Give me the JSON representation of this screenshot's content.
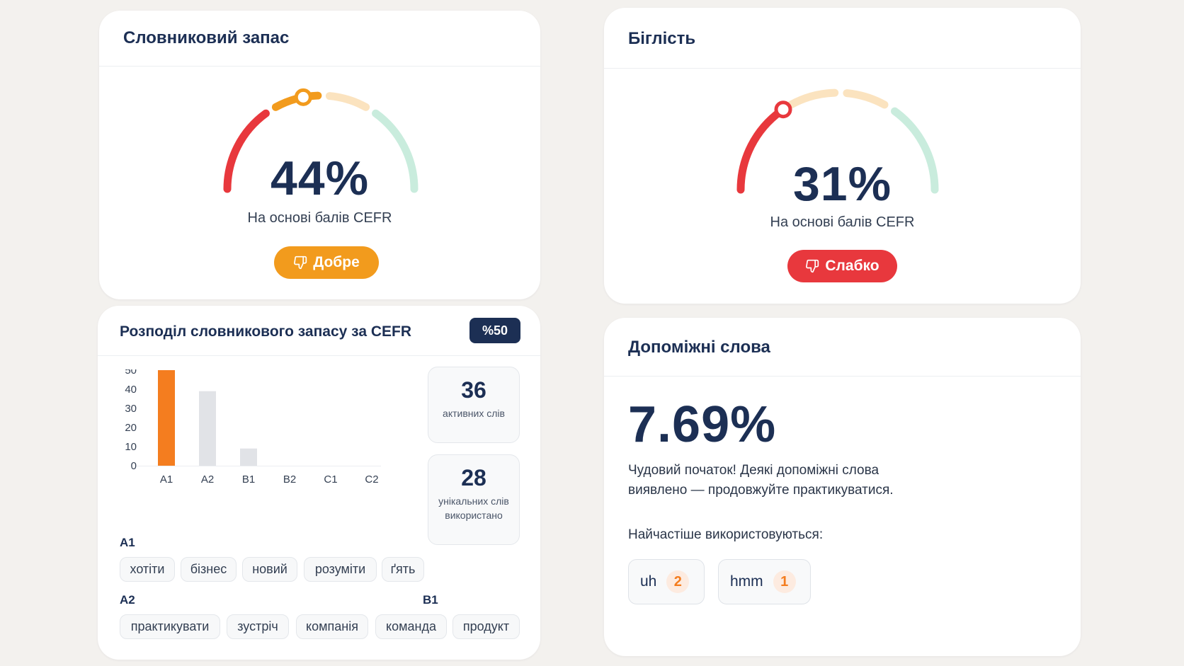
{
  "vocab": {
    "title": "Словниковий запас",
    "percent": "44%",
    "level": 0.44,
    "subtitle": "На основі балів CEFR",
    "rating": "Добре",
    "rating_color": "#f29b1d"
  },
  "fluency": {
    "title": "Біглість",
    "percent": "31%",
    "level": 0.31,
    "subtitle": "На основі балів CEFR",
    "rating": "Слабко",
    "rating_color": "#e8383d"
  },
  "distribution": {
    "title": "Розподіл словникового запасу за CEFR",
    "badge": "%50",
    "active_count": "36",
    "active_label": "активних слів",
    "unique_count": "28",
    "unique_label": "унікальних слів використано",
    "groups": [
      {
        "level": "A1",
        "words": [
          "хотіти",
          "бізнес",
          "новий",
          "розуміти",
          "ґять"
        ]
      },
      {
        "level": "A2",
        "words": [
          "практикувати",
          "зустріч",
          "компанія"
        ]
      },
      {
        "level": "B1",
        "words": [
          "команда",
          "продукт"
        ]
      }
    ]
  },
  "chart_data": {
    "type": "bar",
    "categories": [
      "A1",
      "A2",
      "B1",
      "B2",
      "C1",
      "C2"
    ],
    "values": [
      50,
      39,
      9,
      0,
      0,
      0
    ],
    "highlight_category": "A1",
    "highlight_color": "#f47d1f",
    "bar_color": "#e1e3e7",
    "ylim": [
      0,
      50
    ],
    "yticks": [
      0,
      10,
      20,
      30,
      40,
      50
    ],
    "grid": false
  },
  "fillers": {
    "title": "Допоміжні слова",
    "percent": "7.69%",
    "description": "Чудовий початок! Деякі допоміжні слова виявлено — продовжуйте практикуватися.",
    "frequent_label": "Найчастіше використовуються:",
    "words": [
      {
        "word": "uh",
        "count": "2"
      },
      {
        "word": "hmm",
        "count": "1"
      }
    ]
  },
  "icons": {
    "rating_icon": "thumbs-down-icon"
  },
  "colors": {
    "navy": "#1c2f54",
    "red": "#e8383d",
    "orange": "#f29b1d",
    "light_orange": "#fbe3bf",
    "mint": "#c9ecdd"
  }
}
